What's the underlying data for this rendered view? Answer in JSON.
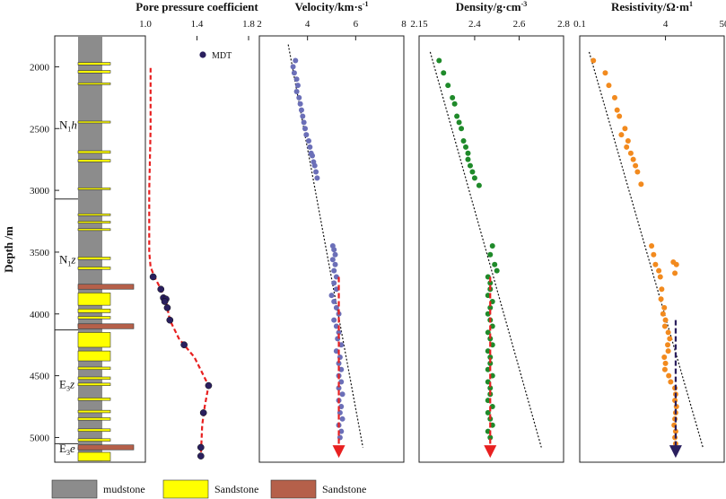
{
  "chart_data": {
    "type": "well-log",
    "ylabel": "Depth /m",
    "ylim": [
      5200,
      1750
    ],
    "depth_ticks": [
      2000,
      2500,
      3000,
      3500,
      4000,
      4500,
      5000
    ],
    "formations": [
      {
        "label": "N",
        "sub": "1",
        "tail": "h",
        "depth": 2500,
        "top": 1750,
        "bottom": 3070
      },
      {
        "label": "N",
        "sub": "1",
        "tail": "z",
        "depth": 3590,
        "top": 3070,
        "bottom": 4130
      },
      {
        "label": "E",
        "sub": "3",
        "tail": "z",
        "depth": 4600,
        "top": 4130,
        "bottom": 5050
      },
      {
        "label": "E",
        "sub": "3",
        "tail": "e",
        "depth": 5120,
        "top": 5050,
        "bottom": 5200
      }
    ],
    "lithology": {
      "sandstone_yellow": [
        [
          1965,
          1985
        ],
        [
          2030,
          2050
        ],
        [
          2130,
          2145
        ],
        [
          2440,
          2455
        ],
        [
          2680,
          2700
        ],
        [
          2750,
          2770
        ],
        [
          2980,
          2995
        ],
        [
          3190,
          3205
        ],
        [
          3250,
          3265
        ],
        [
          3310,
          3325
        ],
        [
          3540,
          3560
        ],
        [
          3620,
          3640
        ],
        [
          3830,
          3930
        ],
        [
          3960,
          3990
        ],
        [
          4020,
          4040
        ],
        [
          4080,
          4100
        ],
        [
          4150,
          4270
        ],
        [
          4300,
          4380
        ],
        [
          4430,
          4450
        ],
        [
          4510,
          4530
        ],
        [
          4560,
          4580
        ],
        [
          4680,
          4700
        ],
        [
          4780,
          4800
        ],
        [
          4840,
          4860
        ],
        [
          4930,
          4950
        ],
        [
          5010,
          5030
        ],
        [
          5080,
          5100
        ],
        [
          5120,
          5190
        ]
      ],
      "sandstone_brown": [
        [
          3760,
          3800
        ],
        [
          4080,
          4120
        ],
        [
          5060,
          5100
        ]
      ]
    },
    "panels": [
      {
        "id": "pore-pressure",
        "title": "Pore pressure coefficient",
        "xlim": [
          1.0,
          1.8
        ],
        "ticks": [
          1.0,
          1.4,
          1.8
        ],
        "tick_labels": [
          "1.0",
          "1.4",
          "1.8"
        ],
        "legend": "MDT",
        "series": [
          {
            "name": "MDT",
            "style": "dot",
            "color": "#2a1f5e",
            "points": [
              [
                1.06,
                3700
              ],
              [
                1.12,
                3800
              ],
              [
                1.14,
                3870
              ],
              [
                1.16,
                3880
              ],
              [
                1.15,
                3900
              ],
              [
                1.17,
                3950
              ],
              [
                1.19,
                4050
              ],
              [
                1.3,
                4250
              ],
              [
                1.49,
                4580
              ],
              [
                1.45,
                4800
              ],
              [
                1.43,
                5080
              ],
              [
                1.43,
                5150
              ]
            ]
          },
          {
            "name": "trend",
            "style": "dash",
            "color": "#e82020",
            "points": [
              [
                1.04,
                2010
              ],
              [
                1.04,
                2500
              ],
              [
                1.03,
                3000
              ],
              [
                1.03,
                3500
              ],
              [
                1.04,
                3620
              ],
              [
                1.07,
                3700
              ],
              [
                1.12,
                3800
              ],
              [
                1.16,
                3900
              ],
              [
                1.19,
                4050
              ],
              [
                1.26,
                4200
              ],
              [
                1.38,
                4350
              ],
              [
                1.49,
                4580
              ],
              [
                1.46,
                4750
              ],
              [
                1.44,
                4900
              ],
              [
                1.43,
                5150
              ]
            ]
          }
        ]
      },
      {
        "id": "velocity",
        "title": "Velocity/km·s",
        "title_sup": "-1",
        "xlim": [
          2,
          8
        ],
        "ticks": [
          2,
          4,
          6,
          8
        ],
        "tick_labels": [
          "2",
          "4",
          "6",
          "8"
        ],
        "trend_line": [
          [
            3.2,
            1820
          ],
          [
            6.3,
            5080
          ]
        ],
        "arrow": {
          "x": 5.3,
          "from": 3700,
          "to": 5150,
          "color": "#e82020"
        },
        "color": "#6b6fb8",
        "points": [
          [
            3.5,
            1950
          ],
          [
            3.4,
            2000
          ],
          [
            3.45,
            2050
          ],
          [
            3.55,
            2100
          ],
          [
            3.6,
            2150
          ],
          [
            3.55,
            2200
          ],
          [
            3.65,
            2250
          ],
          [
            3.7,
            2300
          ],
          [
            3.75,
            2350
          ],
          [
            3.8,
            2400
          ],
          [
            3.85,
            2450
          ],
          [
            3.9,
            2500
          ],
          [
            3.95,
            2550
          ],
          [
            4.05,
            2600
          ],
          [
            4.1,
            2650
          ],
          [
            4.15,
            2700
          ],
          [
            4.2,
            2720
          ],
          [
            4.25,
            2770
          ],
          [
            4.3,
            2800
          ],
          [
            4.35,
            2850
          ],
          [
            4.4,
            2900
          ],
          [
            5.05,
            3450
          ],
          [
            5.1,
            3480
          ],
          [
            5.15,
            3520
          ],
          [
            5.05,
            3560
          ],
          [
            5.15,
            3600
          ],
          [
            5.1,
            3650
          ],
          [
            5.2,
            3700
          ],
          [
            5.1,
            3750
          ],
          [
            5.2,
            3800
          ],
          [
            5.0,
            3850
          ],
          [
            5.1,
            3900
          ],
          [
            5.2,
            3950
          ],
          [
            5.3,
            4000
          ],
          [
            5.1,
            4050
          ],
          [
            5.2,
            4100
          ],
          [
            5.3,
            4150
          ],
          [
            5.25,
            4200
          ],
          [
            5.4,
            4250
          ],
          [
            5.2,
            4300
          ],
          [
            5.35,
            4350
          ],
          [
            5.3,
            4400
          ],
          [
            5.4,
            4450
          ],
          [
            5.3,
            4500
          ],
          [
            5.4,
            4550
          ],
          [
            5.3,
            4600
          ],
          [
            5.45,
            4650
          ],
          [
            5.3,
            4700
          ],
          [
            5.4,
            4750
          ],
          [
            5.35,
            4800
          ],
          [
            5.45,
            4850
          ],
          [
            5.3,
            4900
          ],
          [
            5.4,
            4950
          ],
          [
            5.35,
            5000
          ]
        ]
      },
      {
        "id": "density",
        "title": "Density/g·cm",
        "title_sup": "-3",
        "xlim": [
          2.15,
          2.8
        ],
        "ticks": [
          2.15,
          2.4,
          2.6,
          2.8
        ],
        "tick_labels": [
          "2.15",
          "2.4",
          "2.6",
          "2.8"
        ],
        "trend_line": [
          [
            2.2,
            1880
          ],
          [
            2.7,
            5080
          ]
        ],
        "arrow": {
          "x": 2.47,
          "from": 3700,
          "to": 5150,
          "color": "#e82020"
        },
        "color": "#1f8a2a",
        "points": [
          [
            2.24,
            1950
          ],
          [
            2.26,
            2050
          ],
          [
            2.28,
            2150
          ],
          [
            2.3,
            2250
          ],
          [
            2.31,
            2300
          ],
          [
            2.32,
            2400
          ],
          [
            2.33,
            2450
          ],
          [
            2.34,
            2500
          ],
          [
            2.35,
            2600
          ],
          [
            2.36,
            2650
          ],
          [
            2.37,
            2700
          ],
          [
            2.37,
            2750
          ],
          [
            2.38,
            2800
          ],
          [
            2.39,
            2850
          ],
          [
            2.4,
            2900
          ],
          [
            2.42,
            2960
          ],
          [
            2.48,
            3450
          ],
          [
            2.47,
            3520
          ],
          [
            2.49,
            3600
          ],
          [
            2.5,
            3650
          ],
          [
            2.46,
            3700
          ],
          [
            2.47,
            3750
          ],
          [
            2.47,
            3800
          ],
          [
            2.46,
            3850
          ],
          [
            2.48,
            3900
          ],
          [
            2.47,
            3950
          ],
          [
            2.46,
            4000
          ],
          [
            2.47,
            4050
          ],
          [
            2.48,
            4100
          ],
          [
            2.46,
            4150
          ],
          [
            2.47,
            4200
          ],
          [
            2.48,
            4250
          ],
          [
            2.46,
            4300
          ],
          [
            2.47,
            4350
          ],
          [
            2.47,
            4400
          ],
          [
            2.46,
            4450
          ],
          [
            2.48,
            4500
          ],
          [
            2.46,
            4550
          ],
          [
            2.47,
            4600
          ],
          [
            2.47,
            4650
          ],
          [
            2.46,
            4700
          ],
          [
            2.48,
            4750
          ],
          [
            2.46,
            4800
          ],
          [
            2.47,
            4850
          ],
          [
            2.48,
            4900
          ],
          [
            2.46,
            4950
          ],
          [
            2.47,
            5000
          ]
        ]
      },
      {
        "id": "resistivity",
        "title": "Resistivity/Ω·m",
        "title_sup": "1",
        "xlim": [
          0.1,
          50
        ],
        "scale": "log",
        "ticks": [
          0.1,
          4,
          50
        ],
        "tick_labels": [
          "0.1",
          "4",
          "50"
        ],
        "trend_line": [
          [
            0.15,
            1880
          ],
          [
            20.0,
            5080
          ]
        ],
        "arrow": {
          "x": 6.2,
          "from": 4050,
          "to": 5150,
          "color": "#2a1f5e"
        },
        "color": "#f28a1e",
        "points": [
          [
            0.18,
            1950
          ],
          [
            0.3,
            2050
          ],
          [
            0.35,
            2150
          ],
          [
            0.45,
            2250
          ],
          [
            0.5,
            2350
          ],
          [
            0.55,
            2400
          ],
          [
            0.7,
            2500
          ],
          [
            0.6,
            2550
          ],
          [
            0.8,
            2600
          ],
          [
            0.75,
            2650
          ],
          [
            0.9,
            2700
          ],
          [
            1.0,
            2750
          ],
          [
            1.1,
            2800
          ],
          [
            1.2,
            2850
          ],
          [
            1.4,
            2950
          ],
          [
            2.2,
            3450
          ],
          [
            2.4,
            3520
          ],
          [
            2.6,
            3600
          ],
          [
            5.6,
            3580
          ],
          [
            6.4,
            3600
          ],
          [
            6.0,
            3670
          ],
          [
            3.0,
            3650
          ],
          [
            3.2,
            3700
          ],
          [
            3.4,
            3800
          ],
          [
            3.3,
            3880
          ],
          [
            3.8,
            3950
          ],
          [
            3.6,
            4000
          ],
          [
            4.0,
            4050
          ],
          [
            3.9,
            4100
          ],
          [
            4.5,
            4150
          ],
          [
            4.8,
            4200
          ],
          [
            4.4,
            4250
          ],
          [
            4.5,
            4300
          ],
          [
            3.8,
            4350
          ],
          [
            4.0,
            4400
          ],
          [
            3.9,
            4450
          ],
          [
            4.6,
            4500
          ],
          [
            5.0,
            4550
          ],
          [
            6.0,
            4600
          ],
          [
            6.2,
            4650
          ],
          [
            6.0,
            4700
          ],
          [
            6.4,
            4750
          ],
          [
            6.2,
            4800
          ],
          [
            6.0,
            4850
          ],
          [
            5.8,
            4900
          ],
          [
            6.2,
            4950
          ],
          [
            6.0,
            5000
          ],
          [
            6.2,
            5050
          ]
        ]
      }
    ],
    "legend_items": [
      {
        "label": "mudstone",
        "color": "#8c8c8c"
      },
      {
        "label": "Sandstone",
        "color": "#ffff00"
      },
      {
        "label": "Sandstone",
        "color": "#b5604a"
      }
    ]
  }
}
